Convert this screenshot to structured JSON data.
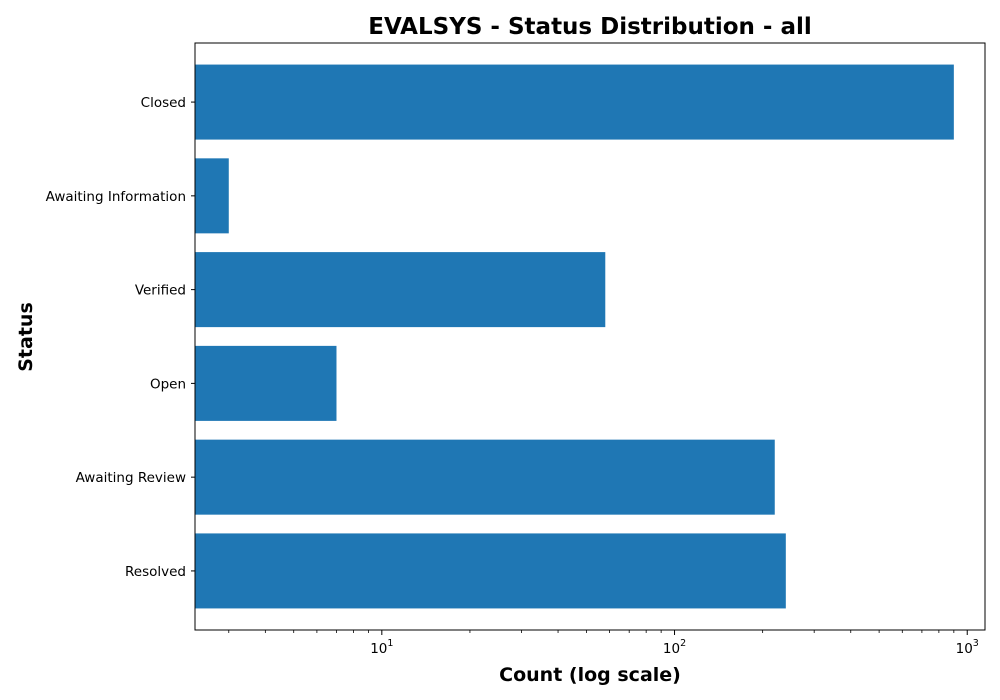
{
  "chart_data": {
    "type": "bar",
    "orientation": "horizontal",
    "title": "EVALSYS - Status Distribution - all",
    "xlabel": "Count (log scale)",
    "ylabel": "Status",
    "x_scale": "log",
    "xlim": [
      2.3,
      1150
    ],
    "x_ticks": [
      {
        "value": 10,
        "base": "10",
        "exp": "1"
      },
      {
        "value": 100,
        "base": "10",
        "exp": "2"
      },
      {
        "value": 1000,
        "base": "10",
        "exp": "3"
      }
    ],
    "categories": [
      "Resolved",
      "Awaiting Review",
      "Open",
      "Verified",
      "Awaiting Information",
      "Closed"
    ],
    "values": [
      240,
      220,
      7,
      58,
      3,
      900
    ],
    "bar_color": "#1f77b4",
    "grid": false
  }
}
